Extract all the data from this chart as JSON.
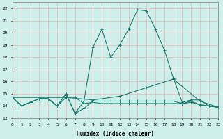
{
  "xlabel": "Humidex (Indice chaleur)",
  "bg_color": "#cff0ea",
  "grid_color": "#e8b4b4",
  "line_color": "#1a7a6e",
  "xlim": [
    0,
    23
  ],
  "ylim": [
    13.0,
    22.5
  ],
  "yticks": [
    13,
    14,
    15,
    16,
    17,
    18,
    19,
    20,
    21,
    22
  ],
  "xticks": [
    0,
    1,
    2,
    3,
    4,
    5,
    6,
    7,
    8,
    9,
    10,
    11,
    12,
    13,
    14,
    15,
    16,
    17,
    18,
    19,
    20,
    21,
    22,
    23
  ],
  "series": [
    {
      "x": [
        0,
        1,
        2,
        3,
        4,
        5,
        6,
        7,
        8,
        9,
        10,
        11,
        12,
        13,
        14,
        15,
        16,
        17,
        18,
        19,
        20,
        21,
        22,
        23
      ],
      "y": [
        14.7,
        14.0,
        14.3,
        14.6,
        14.6,
        14.0,
        14.7,
        14.7,
        14.2,
        14.3,
        14.2,
        14.2,
        14.2,
        14.2,
        14.2,
        14.2,
        14.2,
        14.2,
        14.2,
        14.2,
        14.3,
        14.1,
        14.0,
        13.9
      ]
    },
    {
      "x": [
        0,
        1,
        2,
        3,
        4,
        5,
        6,
        7,
        8,
        9,
        10,
        11,
        12,
        13,
        14,
        15,
        16,
        17,
        18,
        19,
        20,
        21,
        22,
        23
      ],
      "y": [
        14.7,
        14.0,
        14.3,
        14.6,
        14.6,
        14.0,
        15.0,
        13.4,
        14.4,
        18.8,
        20.3,
        18.0,
        19.0,
        20.3,
        21.9,
        21.8,
        20.3,
        18.6,
        16.3,
        14.3,
        14.5,
        14.5,
        14.0,
        13.9
      ]
    },
    {
      "x": [
        0,
        6,
        9,
        12,
        15,
        18,
        21,
        23
      ],
      "y": [
        14.7,
        14.7,
        14.5,
        14.8,
        15.5,
        16.2,
        14.4,
        13.9
      ]
    },
    {
      "x": [
        0,
        1,
        2,
        3,
        4,
        5,
        6,
        7,
        8,
        9,
        10,
        11,
        12,
        13,
        14,
        15,
        16,
        17,
        18,
        19,
        20,
        21,
        22,
        23
      ],
      "y": [
        14.7,
        14.0,
        14.3,
        14.6,
        14.6,
        14.0,
        15.0,
        13.4,
        13.8,
        14.4,
        14.4,
        14.4,
        14.4,
        14.4,
        14.4,
        14.4,
        14.4,
        14.4,
        14.4,
        14.2,
        14.4,
        14.1,
        14.0,
        13.9
      ]
    }
  ]
}
